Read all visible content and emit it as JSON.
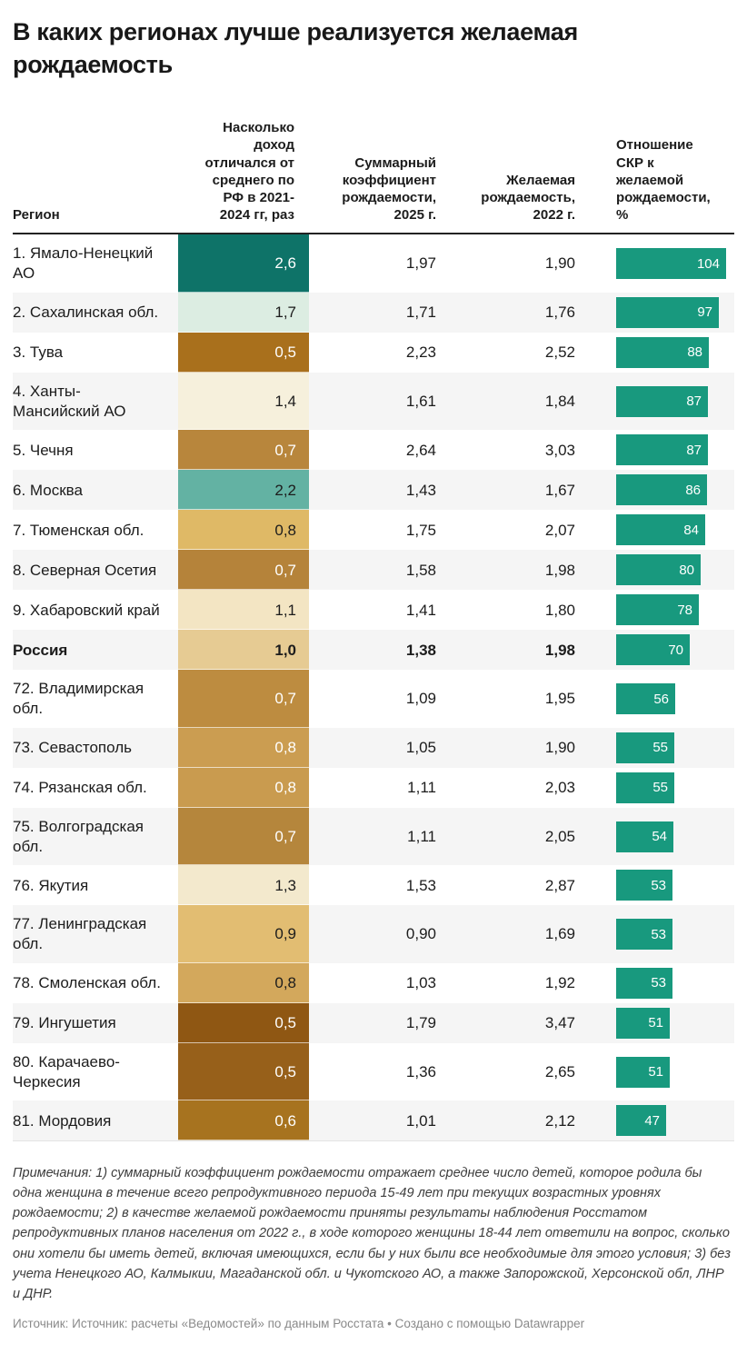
{
  "title": "В каких регионах лучше реализуется желаемая рождаемость",
  "chart_data": {
    "type": "table",
    "title": "В каких регионах лучше реализуется желаемая рождаемость",
    "columns": [
      "Регион",
      "Насколько доход отличался от среднего по РФ в 2021-2024 гг, раз",
      "Суммарный коэффициент рождаемости, 2025 г.",
      "Желаемая рождаемость, 2022 г.",
      "Отношение СКР к желаемой рождаемости, %"
    ],
    "bar_color": "#18997E",
    "bar_max": 104,
    "stripe_color": "#f5f5f5",
    "rows": [
      {
        "region": "1. Ямало-Ненецкий АО",
        "income": "2,6",
        "tfr": "1,97",
        "desired": "1,90",
        "ratio": 104,
        "bg": "#0E7368",
        "fg": "#ffffff",
        "bold": false
      },
      {
        "region": "2. Сахалинская обл.",
        "income": "1,7",
        "tfr": "1,71",
        "desired": "1,76",
        "ratio": 97,
        "bg": "#DCEDE2",
        "fg": "#1c1c1c",
        "bold": false
      },
      {
        "region": "3. Тува",
        "income": "0,5",
        "tfr": "2,23",
        "desired": "2,52",
        "ratio": 88,
        "bg": "#A9701C",
        "fg": "#ffffff",
        "bold": false
      },
      {
        "region": "4. Ханты-Мансийский АО",
        "income": "1,4",
        "tfr": "1,61",
        "desired": "1,84",
        "ratio": 87,
        "bg": "#F6F0DC",
        "fg": "#1c1c1c",
        "bold": false
      },
      {
        "region": "5. Чечня",
        "income": "0,7",
        "tfr": "2,64",
        "desired": "3,03",
        "ratio": 87,
        "bg": "#B8863C",
        "fg": "#ffffff",
        "bold": false
      },
      {
        "region": "6. Москва",
        "income": "2,2",
        "tfr": "1,43",
        "desired": "1,67",
        "ratio": 86,
        "bg": "#63B2A3",
        "fg": "#1c1c1c",
        "bold": false
      },
      {
        "region": "7. Тюменская обл.",
        "income": "0,8",
        "tfr": "1,75",
        "desired": "2,07",
        "ratio": 84,
        "bg": "#DFB966",
        "fg": "#1c1c1c",
        "bold": false
      },
      {
        "region": "8. Северная Осетия",
        "income": "0,7",
        "tfr": "1,58",
        "desired": "1,98",
        "ratio": 80,
        "bg": "#B5833A",
        "fg": "#ffffff",
        "bold": false
      },
      {
        "region": "9. Хабаровский край",
        "income": "1,1",
        "tfr": "1,41",
        "desired": "1,80",
        "ratio": 78,
        "bg": "#F3E5C3",
        "fg": "#1c1c1c",
        "bold": false
      },
      {
        "region": "Россия",
        "income": "1,0",
        "tfr": "1,38",
        "desired": "1,98",
        "ratio": 70,
        "bg": "#E6CB93",
        "fg": "#1c1c1c",
        "bold": true
      },
      {
        "region": "72. Владимирская обл.",
        "income": "0,7",
        "tfr": "1,09",
        "desired": "1,95",
        "ratio": 56,
        "bg": "#BD8C40",
        "fg": "#ffffff",
        "bold": false
      },
      {
        "region": "73. Севастополь",
        "income": "0,8",
        "tfr": "1,05",
        "desired": "1,90",
        "ratio": 55,
        "bg": "#CB9D51",
        "fg": "#ffffff",
        "bold": false
      },
      {
        "region": "74. Рязанская обл.",
        "income": "0,8",
        "tfr": "1,11",
        "desired": "2,03",
        "ratio": 55,
        "bg": "#C99B4F",
        "fg": "#ffffff",
        "bold": false
      },
      {
        "region": "75. Волгоградская обл.",
        "income": "0,7",
        "tfr": "1,11",
        "desired": "2,05",
        "ratio": 54,
        "bg": "#B5863C",
        "fg": "#ffffff",
        "bold": false
      },
      {
        "region": "76. Якутия",
        "income": "1,3",
        "tfr": "1,53",
        "desired": "2,87",
        "ratio": 53,
        "bg": "#F3E9CD",
        "fg": "#1c1c1c",
        "bold": false
      },
      {
        "region": "77. Ленинградская обл.",
        "income": "0,9",
        "tfr": "0,90",
        "desired": "1,69",
        "ratio": 53,
        "bg": "#E2BD72",
        "fg": "#1c1c1c",
        "bold": false
      },
      {
        "region": "78. Смоленская обл.",
        "income": "0,8",
        "tfr": "1,03",
        "desired": "1,92",
        "ratio": 53,
        "bg": "#D3A85C",
        "fg": "#1c1c1c",
        "bold": false
      },
      {
        "region": "79. Ингушетия",
        "income": "0,5",
        "tfr": "1,79",
        "desired": "3,47",
        "ratio": 51,
        "bg": "#8F5713",
        "fg": "#ffffff",
        "bold": false
      },
      {
        "region": "80. Карачаево-Черкесия",
        "income": "0,5",
        "tfr": "1,36",
        "desired": "2,65",
        "ratio": 51,
        "bg": "#97601A",
        "fg": "#ffffff",
        "bold": false
      },
      {
        "region": "81. Мордовия",
        "income": "0,6",
        "tfr": "1,01",
        "desired": "2,12",
        "ratio": 47,
        "bg": "#A7731F",
        "fg": "#ffffff",
        "bold": false
      }
    ]
  },
  "notes": "Примечания: 1) суммарный коэффициент рождаемости отражает среднее число детей, которое родила бы одна женщина в течение всего репродуктивного периода 15-49 лет при текущих возрастных уровнях рождаемости; 2) в качестве желаемой рождаемости приняты результаты наблюдения Росстатом репродуктивных планов населения от 2022 г., в ходе которого женщины 18-44 лет ответили на вопрос, сколько они хотели бы иметь детей, включая имеющихся, если бы у них были все необходимые для этого условия; 3) без учета Ненецкого АО, Калмыкии, Магаданской обл. и Чукотского АО, а также Запорожской, Херсонской обл, ЛНР и ДНР.",
  "source": "Источник: Источник: расчеты «Ведомостей» по данным Росстата • Создано с помощью Datawrapper"
}
